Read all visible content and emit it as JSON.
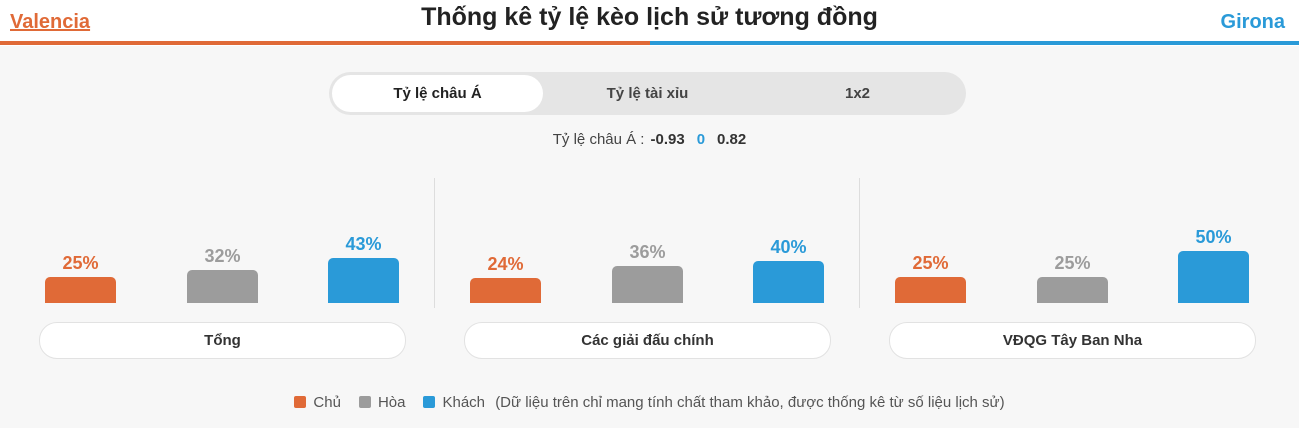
{
  "header": {
    "home_team": "Valencia",
    "away_team": "Girona",
    "title": "Thống kê tỷ lệ kèo lịch sử tương đồng"
  },
  "tabs": [
    {
      "label": "Tỷ lệ châu Á",
      "active": true
    },
    {
      "label": "Tỷ lệ tài xỉu",
      "active": false
    },
    {
      "label": "1x2",
      "active": false
    }
  ],
  "odds": {
    "label": "Tỷ lệ châu Á :",
    "home": "-0.93",
    "line": "0",
    "away": "0.82"
  },
  "colors": {
    "home": "#e06a37",
    "draw": "#9c9c9c",
    "away": "#2a9ad8"
  },
  "chart_data": {
    "type": "bar",
    "series_names": [
      "Chủ",
      "Hòa",
      "Khách"
    ],
    "groups": [
      {
        "name": "Tổng",
        "values": [
          25,
          32,
          43
        ],
        "labels": [
          "25%",
          "32%",
          "43%"
        ]
      },
      {
        "name": "Các giải đấu chính",
        "values": [
          24,
          36,
          40
        ],
        "labels": [
          "24%",
          "36%",
          "40%"
        ]
      },
      {
        "name": "VĐQG Tây Ban Nha",
        "values": [
          25,
          25,
          50
        ],
        "labels": [
          "25%",
          "25%",
          "50%"
        ]
      }
    ]
  },
  "legend": {
    "home": "Chủ",
    "draw": "Hòa",
    "away": "Khách",
    "note": "(Dữ liệu trên chỉ mang tính chất tham khảo, được thống kê từ số liệu lịch sử)"
  }
}
